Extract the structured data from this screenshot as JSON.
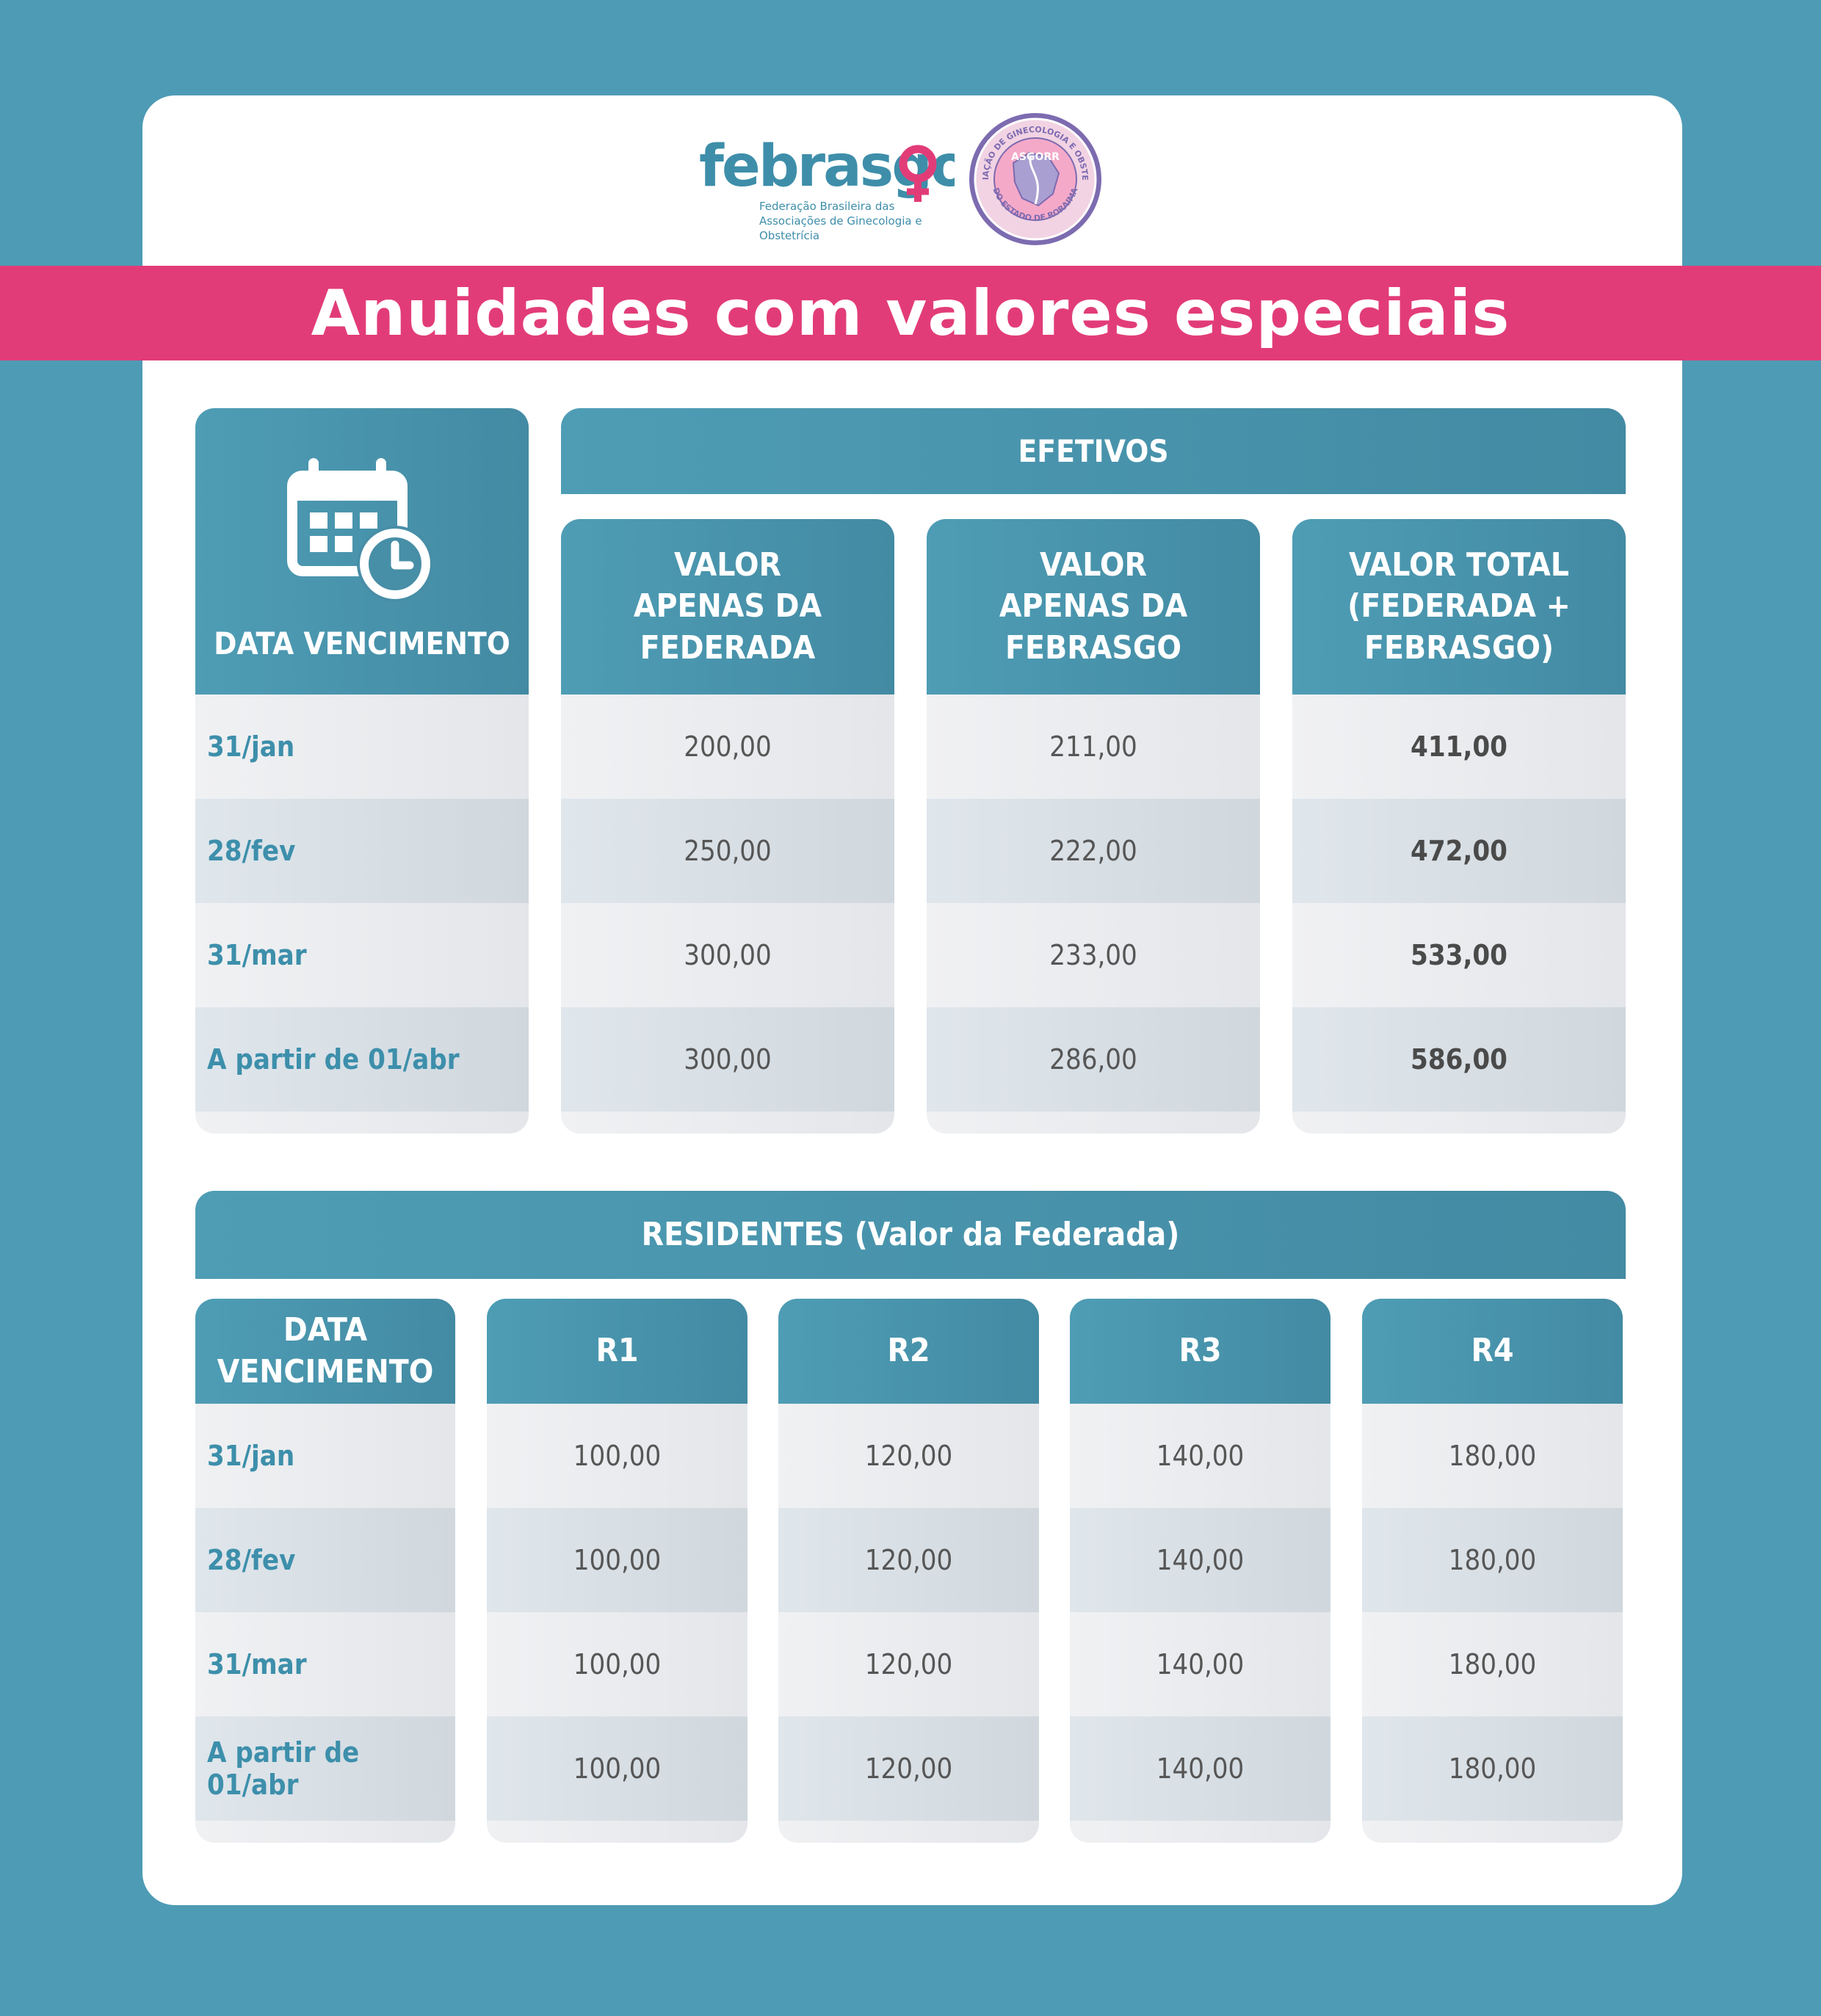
{
  "header": {
    "logo_febrasgo": "febrasgo",
    "logo_febrasgo_tagline_1": "Federação Brasileira das",
    "logo_febrasgo_tagline_2": "Associações de Ginecologia e Obstetrícia",
    "seal_top_text": "ASSOCIAÇÃO DE GINECOLOGIA E OBSTETRÍCIA",
    "seal_center_text": "ASGORR",
    "seal_bottom_text": "DO ESTADO DE RORAIMA",
    "title": "Anuidades com valores especiais"
  },
  "efetivos": {
    "section_title": "EFETIVOS",
    "date_header": "DATA VENCIMENTO",
    "col1_header": "VALOR\nAPENAS DA\nFEDERADA",
    "col2_header": "VALOR\nAPENAS DA\nFEBRASGO",
    "col3_header": "VALOR TOTAL\n(FEDERADA +\nFEBRASGO)",
    "rows": [
      {
        "date": "31/jan",
        "federada": "200,00",
        "febrasgo": "211,00",
        "total": "411,00"
      },
      {
        "date": "28/fev",
        "federada": "250,00",
        "febrasgo": "222,00",
        "total": "472,00"
      },
      {
        "date": "31/mar",
        "federada": "300,00",
        "febrasgo": "233,00",
        "total": "533,00"
      },
      {
        "date": "A partir de 01/abr",
        "federada": "300,00",
        "febrasgo": "286,00",
        "total": "586,00"
      }
    ]
  },
  "residentes": {
    "section_title": "RESIDENTES (Valor da Federada)",
    "date_header": "DATA\nVENCIMENTO",
    "r1_header": "R1",
    "r2_header": "R2",
    "r3_header": "R3",
    "r4_header": "R4",
    "rows": [
      {
        "date": "31/jan",
        "r1": "100,00",
        "r2": "120,00",
        "r3": "140,00",
        "r4": "180,00"
      },
      {
        "date": "28/fev",
        "r1": "100,00",
        "r2": "120,00",
        "r3": "140,00",
        "r4": "180,00"
      },
      {
        "date": "31/mar",
        "r1": "100,00",
        "r2": "120,00",
        "r3": "140,00",
        "r4": "180,00"
      },
      {
        "date": "A partir de 01/abr",
        "r1": "100,00",
        "r2": "120,00",
        "r3": "140,00",
        "r4": "180,00"
      }
    ]
  },
  "colors": {
    "background": "#4e9bb5",
    "banner": "#e23c78",
    "header_teal": "#4a93ac",
    "date_text": "#3d8fab",
    "logo_teal": "#3e8eaa",
    "logo_pink": "#e23c78",
    "seal_purple": "#7d6bb0"
  }
}
